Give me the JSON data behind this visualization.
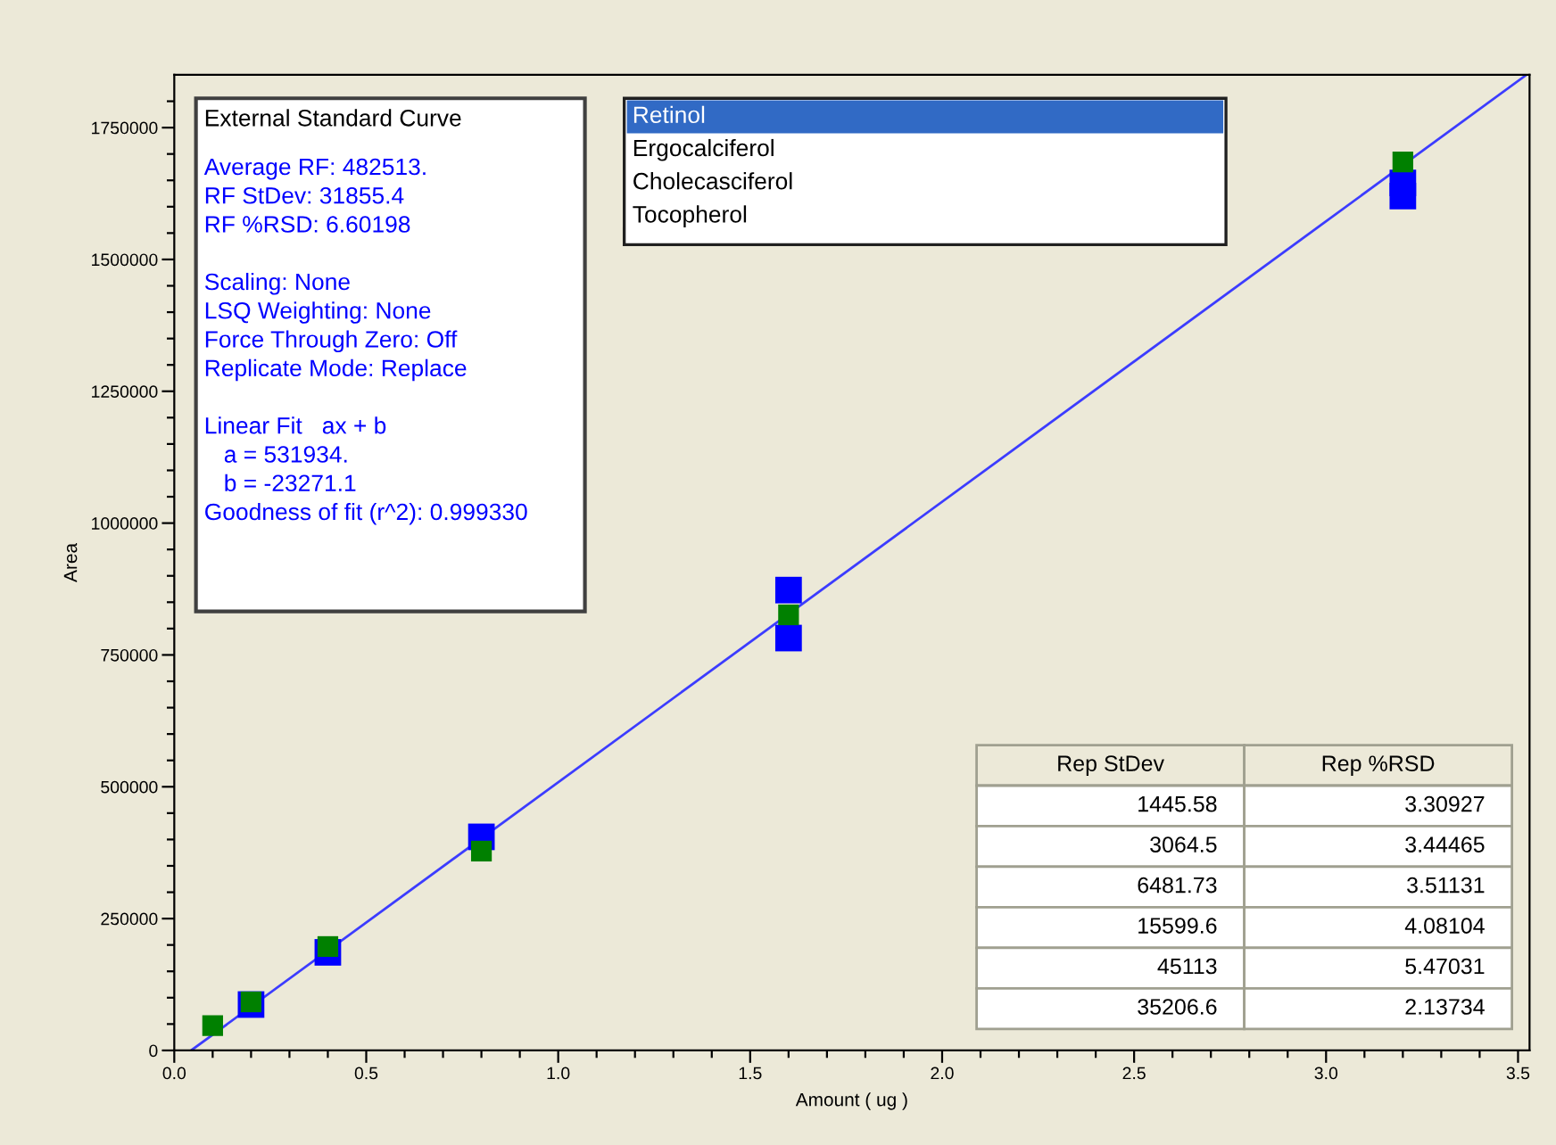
{
  "chart_data": {
    "type": "scatter",
    "title": "External Standard Curve",
    "xlabel": "Amount ( ug )",
    "ylabel": "Area",
    "marker": "square",
    "xlim": [
      0,
      3.53
    ],
    "ylim": [
      0,
      1850000
    ],
    "xticks": [
      {
        "value": 0,
        "label": "0.0"
      },
      {
        "value": 0.1,
        "label": null
      },
      {
        "value": 0.2,
        "label": null
      },
      {
        "value": 0.3,
        "label": null
      },
      {
        "value": 0.4,
        "label": null
      },
      {
        "value": 0.5,
        "label": "0.5"
      },
      {
        "value": 0.6,
        "label": null
      },
      {
        "value": 0.7,
        "label": null
      },
      {
        "value": 0.8,
        "label": null
      },
      {
        "value": 0.9,
        "label": null
      },
      {
        "value": 1,
        "label": "1.0"
      },
      {
        "value": 1.1,
        "label": null
      },
      {
        "value": 1.2,
        "label": null
      },
      {
        "value": 1.3,
        "label": null
      },
      {
        "value": 1.4,
        "label": null
      },
      {
        "value": 1.5,
        "label": "1.5"
      },
      {
        "value": 1.6,
        "label": null
      },
      {
        "value": 1.7,
        "label": null
      },
      {
        "value": 1.8,
        "label": null
      },
      {
        "value": 1.9,
        "label": null
      },
      {
        "value": 2,
        "label": "2.0"
      },
      {
        "value": 2.1,
        "label": null
      },
      {
        "value": 2.2,
        "label": null
      },
      {
        "value": 2.3,
        "label": null
      },
      {
        "value": 2.4,
        "label": null
      },
      {
        "value": 2.5,
        "label": "2.5"
      },
      {
        "value": 2.6,
        "label": null
      },
      {
        "value": 2.7,
        "label": null
      },
      {
        "value": 2.8,
        "label": null
      },
      {
        "value": 2.9,
        "label": null
      },
      {
        "value": 3,
        "label": "3.0"
      },
      {
        "value": 3.1,
        "label": null
      },
      {
        "value": 3.2,
        "label": null
      },
      {
        "value": 3.3,
        "label": null
      },
      {
        "value": 3.4,
        "label": null
      },
      {
        "value": 3.5,
        "label": "3.5"
      }
    ],
    "yticks": [
      0,
      {
        "value": 50000,
        "label": null
      },
      {
        "value": 100000,
        "label": null
      },
      {
        "value": 150000,
        "label": null
      },
      {
        "value": 200000,
        "label": null
      },
      250000,
      {
        "value": 300000,
        "label": null
      },
      {
        "value": 350000,
        "label": null
      },
      {
        "value": 400000,
        "label": null
      },
      {
        "value": 450000,
        "label": null
      },
      500000,
      {
        "value": 550000,
        "label": null
      },
      {
        "value": 600000,
        "label": null
      },
      {
        "value": 650000,
        "label": null
      },
      {
        "value": 700000,
        "label": null
      },
      750000,
      {
        "value": 800000,
        "label": null
      },
      {
        "value": 850000,
        "label": null
      },
      {
        "value": 900000,
        "label": null
      },
      {
        "value": 950000,
        "label": null
      },
      1000000,
      {
        "value": 1050000,
        "label": null
      },
      {
        "value": 1100000,
        "label": null
      },
      {
        "value": 1150000,
        "label": null
      },
      {
        "value": 1200000,
        "label": null
      },
      1250000,
      {
        "value": 1300000,
        "label": null
      },
      {
        "value": 1350000,
        "label": null
      },
      {
        "value": 1400000,
        "label": null
      },
      {
        "value": 1450000,
        "label": null
      },
      1500000,
      {
        "value": 1550000,
        "label": null
      },
      {
        "value": 1600000,
        "label": null
      },
      {
        "value": 1650000,
        "label": null
      },
      {
        "value": 1700000,
        "label": null
      },
      1750000,
      {
        "value": 1800000,
        "label": null
      }
    ],
    "grid": false,
    "legend": false,
    "series": [
      {
        "type": "line",
        "color": "#3c3cff",
        "marker": "none",
        "line_style": "solid",
        "x": [
          0.044,
          3.52
        ],
        "values": [
          0,
          1849000
        ]
      },
      {
        "color": "#0000ff",
        "x": [
          0.2,
          0.4,
          0.8,
          1.6,
          1.6,
          3.2,
          3.2
        ],
        "values": [
          87000,
          186000,
          405000,
          873000,
          782000,
          1645000,
          1620000
        ]
      },
      {
        "color": "#008000",
        "x": [
          0.1,
          0.2,
          0.4,
          0.8,
          1.6,
          3.2
        ],
        "values": [
          47000,
          92000,
          197000,
          378000,
          826000,
          1685000
        ]
      }
    ],
    "annotations": [
      "Average RF: 482513.\nRF StDev: 31855.4\nRF %RSD: 6.60198\n\nScaling: None\nLSQ Weighting: None\nForce Through Zero: Off\nReplicate Mode: Replace\n\nLinear Fit   ax + b\n   a = 531934.\n   b = -23271.1\nGoodness of fit (r^2): 0.999330",
      "Retinol\nErgocalciferol\nCholecasciferol\nTocopherol",
      "Rep StDev\tRep %RSD\n1445.58\t3.30927\n3064.5\t3.44465\n6481.73\t3.51131\n15599.6\t4.08104\n45113\t5.47031\n35206.6\t2.13734"
    ]
  }
}
